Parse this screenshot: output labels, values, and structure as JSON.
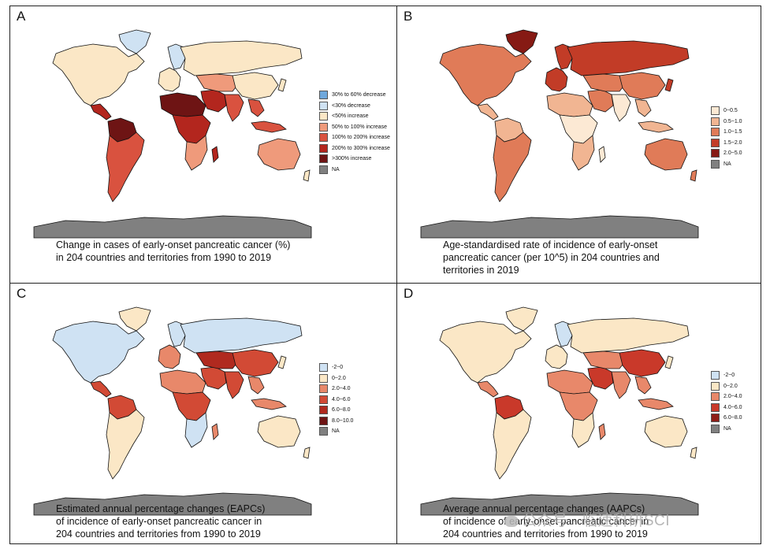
{
  "colors": {
    "ocean": "#ffffff",
    "border": "#111111",
    "antarctica": "#808080",
    "na": "#808080"
  },
  "panels": [
    {
      "letter": "A",
      "caption": [
        "Change in cases of early-onset pancreatic cancer (%)",
        "in 204 countries and territories from 1990 to 2019"
      ],
      "legend": [
        {
          "label": "30% to 60% decrease",
          "color": "#6fa8dc"
        },
        {
          "label": "<30% decrease",
          "color": "#cfe2f3"
        },
        {
          "label": "<50% increase",
          "color": "#fbe7c6"
        },
        {
          "label": "50% to 100% increase",
          "color": "#ef9a7b"
        },
        {
          "label": "100% to 200% increase",
          "color": "#d9523f"
        },
        {
          "label": "200% to 300% increase",
          "color": "#b3261e"
        },
        {
          "label": ">300% increase",
          "color": "#6e1414"
        },
        {
          "label": "NA",
          "color": "#808080"
        }
      ],
      "region_fill": {
        "north_america": "#fbe7c6",
        "greenland": "#cfe2f3",
        "central_america": "#b3261e",
        "south_america": "#d9523f",
        "south_america_north": "#6e1414",
        "europe_west": "#fbe7c6",
        "europe_north": "#cfe2f3",
        "russia": "#fbe7c6",
        "africa_north": "#6e1414",
        "africa_central": "#b3261e",
        "africa_south": "#ef9a7b",
        "middle_east": "#b3261e",
        "central_asia": "#ef9a7b",
        "china": "#fbe7c6",
        "india": "#d9523f",
        "southeast_asia": "#d9523f",
        "japan": "#fbe7c6",
        "indonesia": "#d9523f",
        "australia": "#ef9a7b",
        "new_zealand": "#fbe7c6",
        "madagascar": "#b3261e"
      }
    },
    {
      "letter": "B",
      "caption": [
        "Age-standardised rate of incidence of early-onset",
        "pancreatic cancer (per 10^5) in 204 countries and",
        "territories in 2019"
      ],
      "legend": [
        {
          "label": "0~0.5",
          "color": "#fce9d4"
        },
        {
          "label": "0.5~1.0",
          "color": "#f1b592"
        },
        {
          "label": "1.0~1.5",
          "color": "#e07b58"
        },
        {
          "label": "1.5~2.0",
          "color": "#c23c27"
        },
        {
          "label": "2.0~5.0",
          "color": "#861a14"
        },
        {
          "label": "NA",
          "color": "#808080"
        }
      ],
      "region_fill": {
        "north_america": "#e07b58",
        "greenland": "#861a14",
        "central_america": "#f1b592",
        "south_america": "#e07b58",
        "south_america_north": "#f1b592",
        "europe_west": "#c23c27",
        "europe_north": "#c23c27",
        "russia": "#c23c27",
        "africa_north": "#f1b592",
        "africa_central": "#fce9d4",
        "africa_south": "#f1b592",
        "middle_east": "#e07b58",
        "central_asia": "#e07b58",
        "china": "#e07b58",
        "india": "#fce9d4",
        "southeast_asia": "#f1b592",
        "japan": "#c23c27",
        "indonesia": "#f1b592",
        "australia": "#e07b58",
        "new_zealand": "#e07b58",
        "madagascar": "#fce9d4"
      }
    },
    {
      "letter": "C",
      "caption": [
        "Estimated annual percentage changes (EAPCs)",
        "of incidence of early-onset pancreatic cancer in",
        "204 countries and territories from 1990 to 2019"
      ],
      "legend": [
        {
          "label": "-2~0",
          "color": "#cfe2f3"
        },
        {
          "label": "0~2.0",
          "color": "#fbe7c6"
        },
        {
          "label": "2.0~4.0",
          "color": "#e8886a"
        },
        {
          "label": "4.0~6.0",
          "color": "#d24a35"
        },
        {
          "label": "6.0~8.0",
          "color": "#b02a1f"
        },
        {
          "label": "8.0~10.0",
          "color": "#6e1414"
        },
        {
          "label": "NA",
          "color": "#808080"
        }
      ],
      "region_fill": {
        "north_america": "#cfe2f3",
        "greenland": "#fbe7c6",
        "central_america": "#d24a35",
        "south_america": "#fbe7c6",
        "south_america_north": "#d24a35",
        "europe_west": "#e8886a",
        "europe_north": "#cfe2f3",
        "russia": "#cfe2f3",
        "africa_north": "#e8886a",
        "africa_central": "#d24a35",
        "africa_south": "#cfe2f3",
        "middle_east": "#d24a35",
        "central_asia": "#b02a1f",
        "china": "#d24a35",
        "india": "#d24a35",
        "southeast_asia": "#e8886a",
        "japan": "#fbe7c6",
        "indonesia": "#e8886a",
        "australia": "#fbe7c6",
        "new_zealand": "#fbe7c6",
        "madagascar": "#e8886a"
      }
    },
    {
      "letter": "D",
      "caption": [
        "Average annual percentage changes (AAPCs)",
        "of incidence of early-onset pancreatic cancer in",
        "204 countries and territories from 1990 to 2019"
      ],
      "legend": [
        {
          "label": "-2~0",
          "color": "#cfe2f3"
        },
        {
          "label": "0~2.0",
          "color": "#fbe7c6"
        },
        {
          "label": "2.0~4.0",
          "color": "#e8886a"
        },
        {
          "label": "4.0~6.0",
          "color": "#c9392a"
        },
        {
          "label": "6.0~8.0",
          "color": "#8e1d16"
        },
        {
          "label": "NA",
          "color": "#808080"
        }
      ],
      "region_fill": {
        "north_america": "#fbe7c6",
        "greenland": "#fbe7c6",
        "central_america": "#e8886a",
        "south_america": "#fbe7c6",
        "south_america_north": "#c9392a",
        "europe_west": "#fbe7c6",
        "europe_north": "#cfe2f3",
        "russia": "#fbe7c6",
        "africa_north": "#e8886a",
        "africa_central": "#e8886a",
        "africa_south": "#fbe7c6",
        "middle_east": "#c9392a",
        "central_asia": "#e8886a",
        "china": "#c9392a",
        "india": "#e8886a",
        "southeast_asia": "#e8886a",
        "japan": "#fbe7c6",
        "indonesia": "#e8886a",
        "australia": "#fbe7c6",
        "new_zealand": "#fbe7c6",
        "madagascar": "#e8886a"
      }
    }
  ],
  "watermark": "公众号 · 临速科研SCI"
}
